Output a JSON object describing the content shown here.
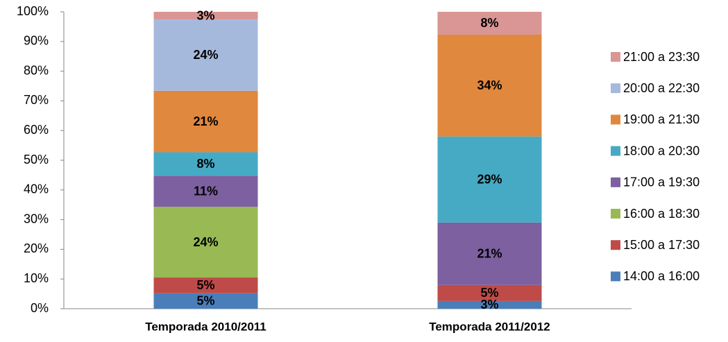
{
  "chart_data": {
    "type": "stacked_bar_100",
    "categories": [
      "Temporada 2010/2011",
      "Temporada 2011/2012"
    ],
    "series": [
      {
        "name": "14:00 a 16:00",
        "color": "#4a7ebb",
        "values": [
          5.2,
          2.6
        ],
        "value_labels": [
          "5%",
          "3%"
        ]
      },
      {
        "name": "15:00 a 17:30",
        "color": "#be4b48",
        "values": [
          5.3,
          5.4
        ],
        "value_labels": [
          "5%",
          "5%"
        ]
      },
      {
        "name": "16:00 a 18:30",
        "color": "#98b954",
        "values": [
          23.8,
          null
        ],
        "value_labels": [
          "24%",
          null
        ]
      },
      {
        "name": "17:00 a 19:30",
        "color": "#7d60a0",
        "values": [
          10.5,
          21.0
        ],
        "value_labels": [
          "11%",
          "21%"
        ]
      },
      {
        "name": "18:00 a 20:30",
        "color": "#46aac5",
        "values": [
          7.9,
          29.0
        ],
        "value_labels": [
          "8%",
          "29%"
        ]
      },
      {
        "name": "19:00 a 21:30",
        "color": "#e0883e",
        "values": [
          20.7,
          34.3
        ],
        "value_labels": [
          "21%",
          "34%"
        ]
      },
      {
        "name": "20:00 a 22:30",
        "color": "#a5b9dd",
        "values": [
          24.0,
          null
        ],
        "value_labels": [
          "24%",
          null
        ]
      },
      {
        "name": "21:00 a 23:30",
        "color": "#d99694",
        "values": [
          2.6,
          7.7
        ],
        "value_labels": [
          "3%",
          "8%"
        ]
      }
    ],
    "ylim": [
      0,
      100
    ],
    "yticks": [
      {
        "value": 0,
        "label": "0%"
      },
      {
        "value": 10,
        "label": "10%"
      },
      {
        "value": 20,
        "label": "20%"
      },
      {
        "value": 30,
        "label": "30%"
      },
      {
        "value": 40,
        "label": "40%"
      },
      {
        "value": 50,
        "label": "50%"
      },
      {
        "value": 60,
        "label": "60%"
      },
      {
        "value": 70,
        "label": "70%"
      },
      {
        "value": 80,
        "label": "80%"
      },
      {
        "value": 90,
        "label": "90%"
      },
      {
        "value": 100,
        "label": "100%"
      }
    ],
    "legend": "right"
  }
}
